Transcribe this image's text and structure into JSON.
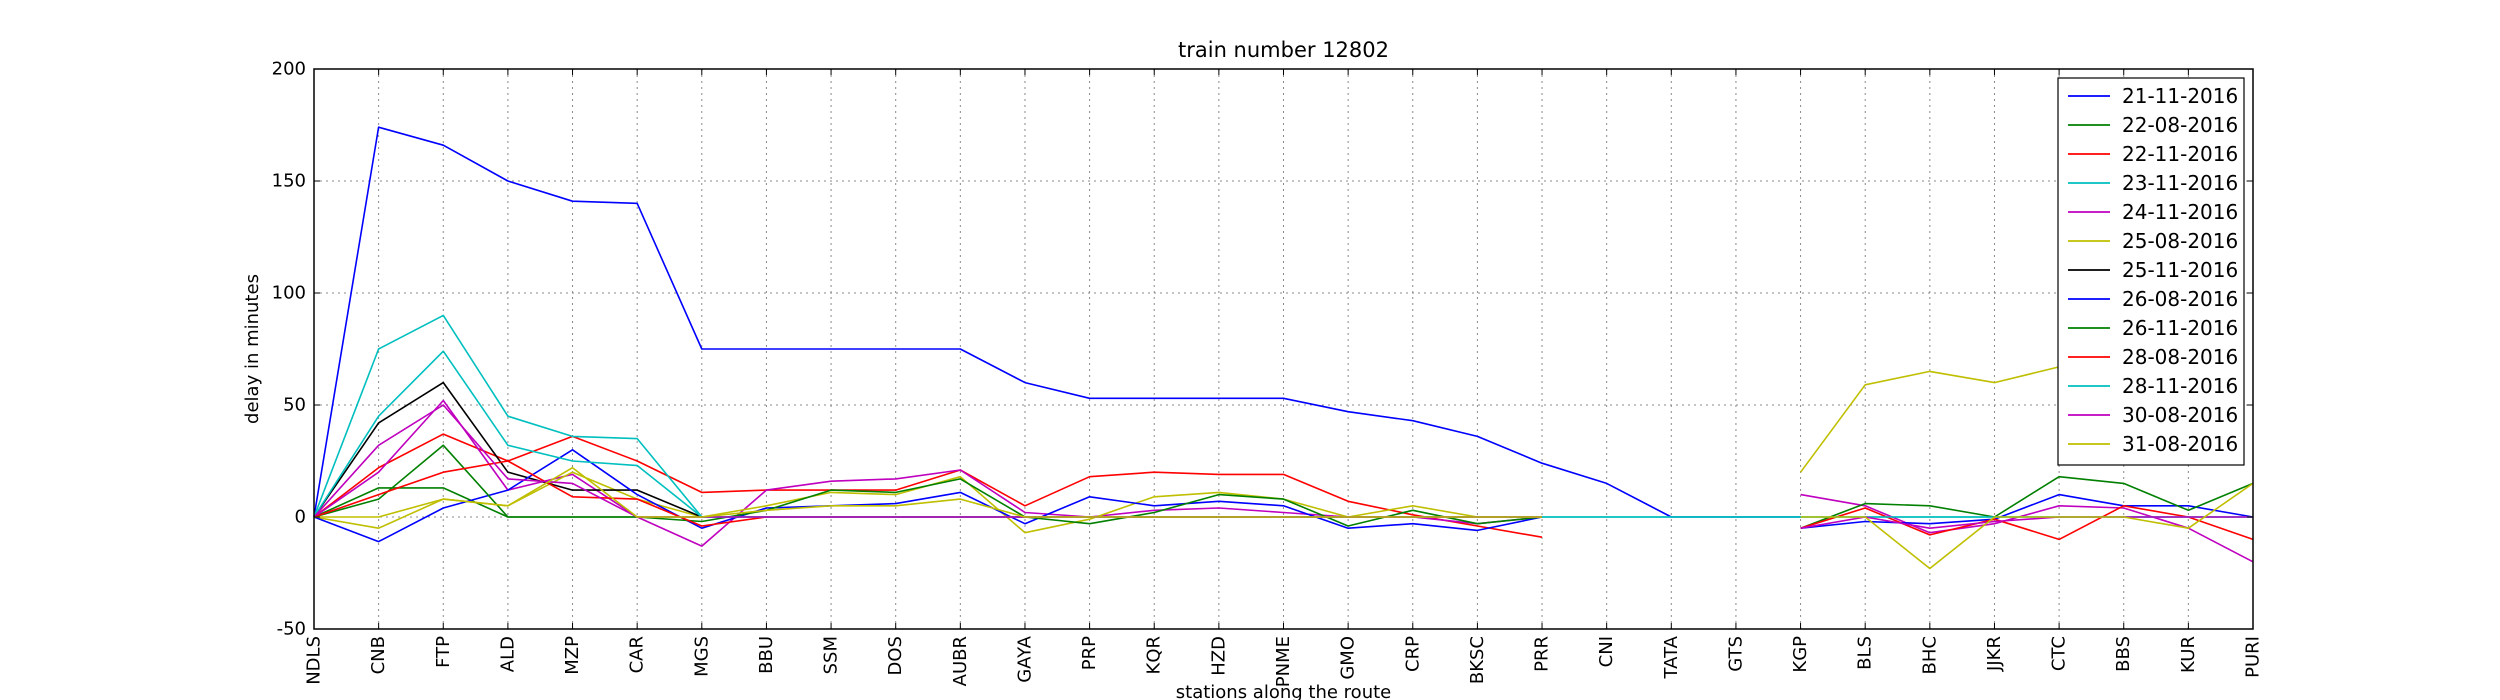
{
  "chart_data": {
    "type": "line",
    "title": "train number 12802",
    "xlabel": "stations along the route",
    "ylabel": "delay in minutes",
    "ylim": [
      -50,
      200
    ],
    "yticks": [
      -50,
      0,
      50,
      100,
      150,
      200
    ],
    "grid": true,
    "legend_position": "top-right",
    "categories": [
      "NDLS",
      "CNB",
      "FTP",
      "ALD",
      "MZP",
      "CAR",
      "MGS",
      "BBU",
      "SSM",
      "DOS",
      "AUBR",
      "GAYA",
      "PRP",
      "KQR",
      "HZD",
      "PNME",
      "GMO",
      "CRP",
      "BKSC",
      "PRR",
      "CNI",
      "TATA",
      "GTS",
      "KGP",
      "BLS",
      "BHC",
      "JJKR",
      "CTC",
      "BBS",
      "KUR",
      "PURI"
    ],
    "series": [
      {
        "name": "21-11-2016",
        "color": "#0000ff",
        "values": [
          0,
          174,
          166,
          150,
          141,
          140,
          75,
          75,
          75,
          75,
          75,
          60,
          53,
          53,
          53,
          53,
          47,
          43,
          36,
          24,
          15,
          0,
          0,
          0,
          null,
          null,
          null,
          null,
          null,
          null,
          null
        ]
      },
      {
        "name": "22-08-2016",
        "color": "#008000",
        "values": [
          0,
          13,
          13,
          0,
          0,
          0,
          0,
          0,
          0,
          0,
          0,
          0,
          0,
          0,
          0,
          0,
          0,
          0,
          0,
          0,
          null,
          null,
          null,
          null,
          null,
          null,
          null,
          null,
          null,
          null,
          null
        ]
      },
      {
        "name": "22-11-2016",
        "color": "#ff0000",
        "values": [
          0,
          22,
          37,
          25,
          36,
          25,
          11,
          12,
          12,
          12,
          21,
          5,
          18,
          20,
          19,
          19,
          7,
          1,
          -4,
          -9,
          null,
          null,
          null,
          null,
          null,
          null,
          null,
          null,
          null,
          null,
          null
        ]
      },
      {
        "name": "23-11-2016",
        "color": "#00bfbf",
        "values": [
          0,
          75,
          90,
          45,
          36,
          35,
          0,
          0,
          0,
          0,
          0,
          0,
          0,
          0,
          0,
          0,
          0,
          0,
          0,
          0,
          0,
          0,
          0,
          0,
          0,
          0,
          0,
          0,
          0,
          0,
          0
        ]
      },
      {
        "name": "24-11-2016",
        "color": "#bf00bf",
        "values": [
          0,
          20,
          52,
          12,
          19,
          0,
          -13,
          12,
          16,
          17,
          21,
          2,
          0,
          3,
          4,
          2,
          0,
          0,
          -3,
          0,
          null,
          null,
          null,
          10,
          5,
          -7,
          -3,
          5,
          4,
          -5,
          -20
        ]
      },
      {
        "name": "25-08-2016",
        "color": "#bfbf00",
        "values": [
          0,
          -5,
          8,
          5,
          20,
          8,
          0,
          5,
          11,
          10,
          18,
          -7,
          -1,
          9,
          11,
          8,
          0,
          5,
          0,
          null,
          null,
          null,
          null,
          20,
          59,
          65,
          60,
          67,
          null,
          null,
          60
        ]
      },
      {
        "name": "25-11-2016",
        "color": "#000000",
        "values": [
          0,
          42,
          60,
          20,
          12,
          12,
          0,
          null,
          null,
          null,
          null,
          null,
          null,
          null,
          null,
          null,
          null,
          null,
          null,
          null,
          null,
          null,
          null,
          null,
          null,
          null,
          null,
          null,
          null,
          null,
          null
        ]
      },
      {
        "name": "26-08-2016",
        "color": "#0000ff",
        "values": [
          0,
          -11,
          4,
          12,
          30,
          10,
          -5,
          4,
          5,
          6,
          11,
          -3,
          9,
          5,
          7,
          5,
          -5,
          -3,
          -6,
          0,
          null,
          null,
          null,
          -5,
          -2,
          -3,
          -1,
          10,
          5,
          5,
          0
        ]
      },
      {
        "name": "26-11-2016",
        "color": "#008000",
        "values": [
          0,
          8,
          32,
          0,
          0,
          0,
          -2,
          3,
          12,
          11,
          17,
          0,
          -3,
          2,
          10,
          8,
          -4,
          3,
          -3,
          0,
          null,
          null,
          null,
          -5,
          6,
          5,
          0,
          18,
          15,
          3,
          15
        ]
      },
      {
        "name": "28-08-2016",
        "color": "#ff0000",
        "values": [
          0,
          10,
          20,
          25,
          9,
          8,
          -4,
          0,
          0,
          0,
          0,
          0,
          0,
          0,
          0,
          0,
          0,
          0,
          0,
          0,
          null,
          null,
          null,
          -5,
          4,
          -8,
          -1,
          -10,
          5,
          0,
          -10
        ]
      },
      {
        "name": "28-11-2016",
        "color": "#00bfbf",
        "values": [
          0,
          45,
          74,
          32,
          25,
          23,
          0,
          0,
          0,
          0,
          0,
          0,
          0,
          0,
          0,
          0,
          0,
          0,
          0,
          0,
          0,
          0,
          0,
          0,
          0,
          0,
          0,
          0,
          0,
          0,
          0
        ]
      },
      {
        "name": "30-08-2016",
        "color": "#bf00bf",
        "values": [
          0,
          32,
          50,
          17,
          15,
          0,
          0,
          0,
          0,
          0,
          0,
          0,
          0,
          0,
          0,
          0,
          0,
          0,
          0,
          0,
          null,
          null,
          null,
          -5,
          0,
          -5,
          -2,
          0,
          0,
          0,
          0
        ]
      },
      {
        "name": "31-08-2016",
        "color": "#bfbf00",
        "values": [
          0,
          0,
          8,
          5,
          22,
          0,
          0,
          3,
          5,
          5,
          8,
          0,
          0,
          0,
          0,
          0,
          0,
          0,
          0,
          0,
          null,
          null,
          null,
          0,
          0,
          -23,
          0,
          0,
          0,
          -5,
          15
        ]
      }
    ]
  }
}
